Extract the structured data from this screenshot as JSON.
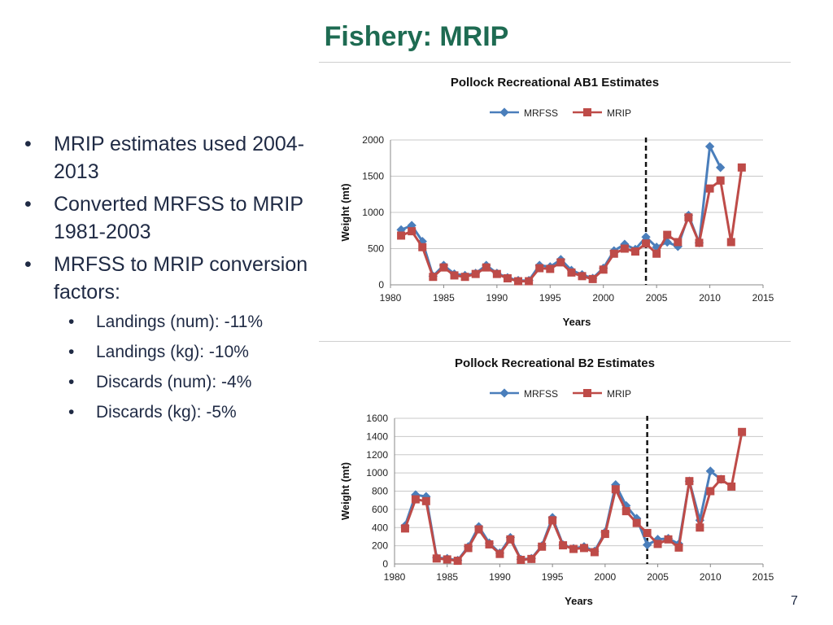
{
  "slide": {
    "title": "Fishery: MRIP",
    "page_number": "7",
    "bullets": [
      "MRIP estimates used 2004-2013",
      "Converted MRFSS to MRIP 1981-2003",
      "MRFSS to MRIP conversion factors:"
    ],
    "sub_bullets": [
      "Landings (num): -11%",
      "Landings (kg): -10%",
      "Discards (num): -4%",
      "Discards (kg): -5%"
    ]
  },
  "colors": {
    "title": "#1e6b52",
    "mrfss": "#4a7ebb",
    "mrip": "#be4b48"
  },
  "chart_data": [
    {
      "type": "line",
      "title": "Pollock Recreational AB1 Estimates",
      "xlabel": "Years",
      "ylabel": "Weight (mt)",
      "xlim": [
        1980,
        2015
      ],
      "ylim": [
        0,
        2000
      ],
      "xticks": [
        1980,
        1985,
        1990,
        1995,
        2000,
        2005,
        2010,
        2015
      ],
      "yticks": [
        0,
        500,
        1000,
        1500,
        2000
      ],
      "legend_position": "top-center",
      "reference_line_x": 2004,
      "series": [
        {
          "name": "MRFSS",
          "x": [
            1981,
            1982,
            1983,
            1984,
            1985,
            1986,
            1987,
            1988,
            1989,
            1990,
            1991,
            1992,
            1993,
            1994,
            1995,
            1996,
            1997,
            1998,
            1999,
            2000,
            2001,
            2002,
            2003,
            2004,
            2005,
            2006,
            2007,
            2008,
            2009,
            2010,
            2011
          ],
          "y": [
            760,
            820,
            600,
            120,
            270,
            150,
            130,
            160,
            270,
            160,
            100,
            60,
            60,
            270,
            250,
            350,
            200,
            140,
            90,
            230,
            470,
            560,
            490,
            660,
            520,
            590,
            530,
            960,
            580,
            1910,
            1620
          ]
        },
        {
          "name": "MRIP",
          "x": [
            1981,
            1982,
            1983,
            1984,
            1985,
            1986,
            1987,
            1988,
            1989,
            1990,
            1991,
            1992,
            1993,
            1994,
            1995,
            1996,
            1997,
            1998,
            1999,
            2000,
            2001,
            2002,
            2003,
            2004,
            2005,
            2006,
            2007,
            2008,
            2009,
            2010,
            2011,
            2012,
            2013
          ],
          "y": [
            680,
            740,
            520,
            110,
            240,
            130,
            110,
            150,
            240,
            150,
            90,
            50,
            50,
            230,
            220,
            310,
            170,
            120,
            80,
            210,
            430,
            500,
            460,
            570,
            430,
            690,
            590,
            930,
            580,
            1330,
            1440,
            590,
            1620
          ]
        }
      ]
    },
    {
      "type": "line",
      "title": "Pollock Recreational B2 Estimates",
      "xlabel": "Years",
      "ylabel": "Weight (mt)",
      "xlim": [
        1980,
        2015
      ],
      "ylim": [
        0,
        1600
      ],
      "xticks": [
        1980,
        1985,
        1990,
        1995,
        2000,
        2005,
        2010,
        2015
      ],
      "yticks": [
        0,
        200,
        400,
        600,
        800,
        1000,
        1200,
        1400,
        1600
      ],
      "legend_position": "top-center",
      "reference_line_x": 2004,
      "series": [
        {
          "name": "MRFSS",
          "x": [
            1981,
            1982,
            1983,
            1984,
            1985,
            1986,
            1987,
            1988,
            1989,
            1990,
            1991,
            1992,
            1993,
            1994,
            1995,
            1996,
            1997,
            1998,
            1999,
            2000,
            2001,
            2002,
            2003,
            2004,
            2005,
            2006,
            2007,
            2008,
            2009,
            2010,
            2011
          ],
          "y": [
            420,
            760,
            740,
            70,
            60,
            40,
            190,
            410,
            230,
            120,
            290,
            50,
            60,
            200,
            510,
            210,
            170,
            190,
            140,
            350,
            870,
            640,
            500,
            210,
            270,
            280,
            220,
            910,
            480,
            1020,
            930
          ]
        },
        {
          "name": "MRIP",
          "x": [
            1981,
            1982,
            1983,
            1984,
            1985,
            1986,
            1987,
            1988,
            1989,
            1990,
            1991,
            1992,
            1993,
            1994,
            1995,
            1996,
            1997,
            1998,
            1999,
            2000,
            2001,
            2002,
            2003,
            2004,
            2005,
            2006,
            2007,
            2008,
            2009,
            2010,
            2011,
            2012,
            2013
          ],
          "y": [
            390,
            710,
            690,
            60,
            50,
            35,
            175,
            380,
            215,
            110,
            270,
            45,
            55,
            190,
            480,
            205,
            165,
            175,
            130,
            330,
            820,
            580,
            450,
            340,
            220,
            270,
            180,
            910,
            400,
            800,
            930,
            850,
            1450
          ]
        }
      ]
    }
  ]
}
